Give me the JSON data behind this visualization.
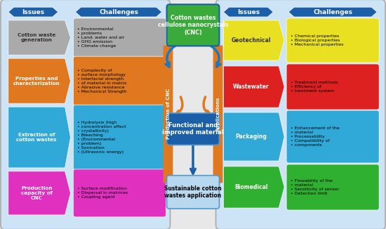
{
  "bg_outer": "#e8e8e8",
  "bg_panel": "#cce4f5",
  "bg_center": "#ffffff",
  "panel_border": "#999999",
  "left_issues_header": "Issues",
  "left_challenges_header": "Challenges",
  "right_issues_header": "Issues",
  "right_challenges_header": "Challenges",
  "header_color": "#1a5fa8",
  "production_label": "Production of CNC",
  "production_color": "#e07820",
  "applications_label": "Applications",
  "applications_color": "#e07820",
  "center_top_text": "Cotton wastes\ncellulose nanocrystals\n(CNC)",
  "center_top_color": "#3aaa3a",
  "center_mid_text": "Functional and\nimproved material",
  "center_mid_color": "#1a5fa8",
  "center_bot_text": "Sustainable cotton\nwastes application",
  "center_bot_color": "#b8d8f0",
  "left_issues": [
    {
      "text": "Cotton waste\ngeneration",
      "color": "#aaaaaa",
      "tcolor": "#333333"
    },
    {
      "text": "Properties and\ncharacterization",
      "color": "#e07820",
      "tcolor": "#ffffff"
    },
    {
      "text": "Extraction of\ncotton wastes",
      "color": "#30a8d8",
      "tcolor": "#ffffff"
    },
    {
      "text": "Production\ncapacity of\nCNC",
      "color": "#e030c0",
      "tcolor": "#ffffff"
    }
  ],
  "left_challenges": [
    {
      "text": "Environmental\nproblems\nLand, water and air\nGHG emission\nClimate change",
      "color": "#aaaaaa"
    },
    {
      "text": "Complexity of\nsurface morphology\nInterfacial strength\nof material in matrix\nAbrasive resistance\nMechanical Strength",
      "color": "#e07820"
    },
    {
      "text": "Hydrolysis (high\nconcentration affect\ncrystallinity)\nBleaching\n(Environmental\nproblem)\nSonication\n(Ultrasonic energy)",
      "color": "#30a8d8"
    },
    {
      "text": "Surface modification\nDispersal in matrices\nCoupling agent",
      "color": "#e030c0"
    }
  ],
  "right_issues": [
    {
      "text": "Geotechnical",
      "color": "#e8e020",
      "tcolor": "#333333"
    },
    {
      "text": "Wastewater",
      "color": "#dd2020",
      "tcolor": "#ffffff"
    },
    {
      "text": "Packaging",
      "color": "#30a8d8",
      "tcolor": "#ffffff"
    },
    {
      "text": "Biomedical",
      "color": "#30b030",
      "tcolor": "#ffffff"
    }
  ],
  "right_challenges": [
    {
      "text": "Chemical properties\nBiological properties\nMechanical properties",
      "color": "#e8e020"
    },
    {
      "text": "Treatment methods\nEfficiency of\ntreatment system",
      "color": "#dd2020"
    },
    {
      "text": "Enhancement of the\nmaterial\nProcessability\nCompatibility of\ncomponents",
      "color": "#30a8d8"
    },
    {
      "text": "Flowability of the\nmaterial\nSensitivity of sensor\nDetection limit",
      "color": "#30b030"
    }
  ]
}
